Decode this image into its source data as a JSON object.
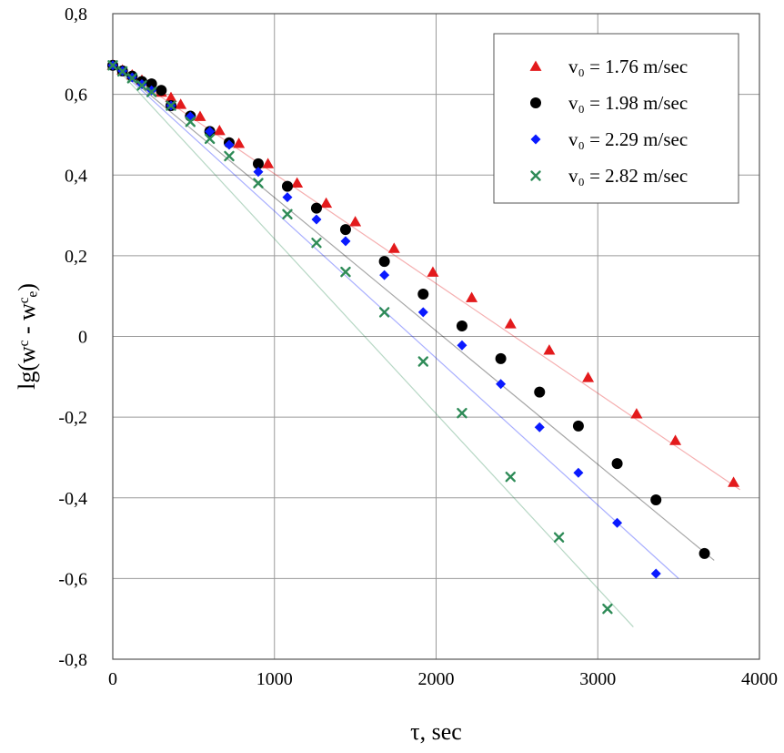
{
  "chart_data": {
    "type": "scatter",
    "xlabel": "τ, sec",
    "ylabel": "lg(wᶜ - wᶜₑ)",
    "xlim": [
      0,
      4000
    ],
    "ylim": [
      -0.8,
      0.8
    ],
    "x_ticks": [
      "0",
      "1000",
      "2000",
      "3000",
      "4000"
    ],
    "y_ticks": [
      "0,8",
      "0,6",
      "0,4",
      "0,2",
      "0",
      "-0,2",
      "-0,4",
      "-0,6",
      "-0,8"
    ],
    "x_tick_values": [
      0,
      1000,
      2000,
      3000,
      4000
    ],
    "y_tick_values": [
      0.8,
      0.6,
      0.4,
      0.2,
      0,
      -0.2,
      -0.4,
      -0.6,
      -0.8
    ],
    "grid": true,
    "legend_position": "top-right",
    "series": [
      {
        "name": "v₀ = 1.76 m/sec",
        "marker": "triangle",
        "color": "#e31a1c",
        "fit": [
          [
            0,
            0.675
          ],
          [
            3880,
            -0.38
          ]
        ],
        "points": [
          [
            0,
            0.672
          ],
          [
            60,
            0.66
          ],
          [
            120,
            0.648
          ],
          [
            180,
            0.635
          ],
          [
            240,
            0.622
          ],
          [
            300,
            0.605
          ],
          [
            360,
            0.592
          ],
          [
            420,
            0.575
          ],
          [
            540,
            0.545
          ],
          [
            660,
            0.51
          ],
          [
            780,
            0.478
          ],
          [
            960,
            0.428
          ],
          [
            1140,
            0.38
          ],
          [
            1320,
            0.33
          ],
          [
            1500,
            0.284
          ],
          [
            1740,
            0.218
          ],
          [
            1980,
            0.159
          ],
          [
            2220,
            0.096
          ],
          [
            2460,
            0.031
          ],
          [
            2700,
            -0.034
          ],
          [
            2940,
            -0.102
          ],
          [
            3240,
            -0.192
          ],
          [
            3480,
            -0.258
          ],
          [
            3840,
            -0.362
          ]
        ]
      },
      {
        "name": "v₀ = 1.98 m/sec",
        "marker": "circle",
        "color": "#000000",
        "fit": [
          [
            0,
            0.675
          ],
          [
            3720,
            -0.555
          ]
        ],
        "points": [
          [
            0,
            0.672
          ],
          [
            60,
            0.658
          ],
          [
            120,
            0.645
          ],
          [
            180,
            0.632
          ],
          [
            240,
            0.626
          ],
          [
            300,
            0.61
          ],
          [
            360,
            0.572
          ],
          [
            480,
            0.546
          ],
          [
            600,
            0.508
          ],
          [
            720,
            0.48
          ],
          [
            900,
            0.428
          ],
          [
            1080,
            0.372
          ],
          [
            1260,
            0.318
          ],
          [
            1440,
            0.265
          ],
          [
            1680,
            0.186
          ],
          [
            1920,
            0.105
          ],
          [
            2160,
            0.026
          ],
          [
            2400,
            -0.055
          ],
          [
            2640,
            -0.138
          ],
          [
            2880,
            -0.222
          ],
          [
            3120,
            -0.315
          ],
          [
            3360,
            -0.405
          ],
          [
            3660,
            -0.538
          ]
        ]
      },
      {
        "name": "v₀ = 2.29 m/sec",
        "marker": "diamond",
        "color": "#0a1aff",
        "fit": [
          [
            0,
            0.675
          ],
          [
            3500,
            -0.6
          ]
        ],
        "points": [
          [
            0,
            0.672
          ],
          [
            60,
            0.658
          ],
          [
            120,
            0.642
          ],
          [
            180,
            0.625
          ],
          [
            240,
            0.61
          ],
          [
            360,
            0.572
          ],
          [
            480,
            0.545
          ],
          [
            600,
            0.508
          ],
          [
            720,
            0.475
          ],
          [
            900,
            0.408
          ],
          [
            1080,
            0.345
          ],
          [
            1260,
            0.29
          ],
          [
            1440,
            0.236
          ],
          [
            1680,
            0.152
          ],
          [
            1920,
            0.06
          ],
          [
            2160,
            -0.022
          ],
          [
            2400,
            -0.118
          ],
          [
            2640,
            -0.225
          ],
          [
            2880,
            -0.338
          ],
          [
            3120,
            -0.462
          ],
          [
            3360,
            -0.588
          ]
        ]
      },
      {
        "name": "v₀ = 2.82 m/sec",
        "marker": "cross",
        "color": "#2e8b57",
        "fit": [
          [
            0,
            0.675
          ],
          [
            3220,
            -0.72
          ]
        ],
        "points": [
          [
            0,
            0.672
          ],
          [
            60,
            0.657
          ],
          [
            120,
            0.64
          ],
          [
            180,
            0.622
          ],
          [
            240,
            0.606
          ],
          [
            360,
            0.572
          ],
          [
            480,
            0.532
          ],
          [
            600,
            0.49
          ],
          [
            720,
            0.447
          ],
          [
            900,
            0.38
          ],
          [
            1080,
            0.303
          ],
          [
            1260,
            0.232
          ],
          [
            1440,
            0.16
          ],
          [
            1680,
            0.06
          ],
          [
            1920,
            -0.062
          ],
          [
            2160,
            -0.19
          ],
          [
            2460,
            -0.348
          ],
          [
            2760,
            -0.498
          ],
          [
            3060,
            -0.675
          ]
        ]
      }
    ]
  }
}
